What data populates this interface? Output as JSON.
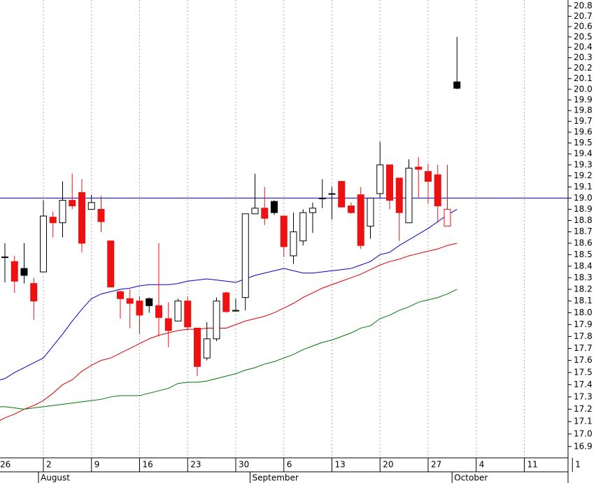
{
  "chart_data": {
    "type": "candlestick",
    "log_scale": true,
    "grid": true,
    "ylim": [
      16.81,
      20.86
    ],
    "yticks": [
      16.9,
      {
        "value": 17,
        "label": "17.0"
      },
      17.1,
      17.2,
      17.3,
      17.4,
      17.5,
      17.6,
      17.7,
      17.8,
      17.9,
      {
        "value": 18,
        "label": "18.0"
      },
      18.1,
      18.2,
      18.3,
      18.4,
      18.5,
      18.6,
      18.7,
      18.8,
      18.9,
      {
        "value": 19,
        "label": "19.0"
      },
      19.1,
      19.2,
      19.3,
      19.4,
      19.5,
      19.6,
      19.7,
      19.8,
      19.9,
      {
        "value": 20,
        "label": "20.0"
      },
      20.1,
      20.2,
      20.3,
      20.4,
      20.5,
      20.6,
      20.7,
      20.8
    ],
    "categories": [
      "26",
      null,
      null,
      null,
      null,
      "2",
      null,
      null,
      null,
      null,
      "9",
      null,
      null,
      null,
      null,
      "16",
      null,
      null,
      null,
      null,
      "23",
      null,
      null,
      null,
      null,
      "30",
      null,
      null,
      null,
      null,
      "6",
      null,
      null,
      null,
      null,
      "13",
      null,
      null,
      null,
      null,
      "20",
      null,
      null,
      null,
      null,
      "27",
      null,
      null,
      null,
      null,
      "4",
      null,
      null,
      null,
      null,
      "11",
      null,
      null,
      null,
      null,
      "1"
    ],
    "month_labels": [
      null,
      null,
      null,
      null,
      null,
      "August",
      null,
      null,
      null,
      null,
      null,
      null,
      null,
      null,
      null,
      null,
      null,
      null,
      null,
      null,
      null,
      null,
      null,
      null,
      null,
      null,
      null,
      "September",
      null,
      null,
      null,
      null,
      null,
      null,
      null,
      null,
      null,
      null,
      null,
      null,
      null,
      null,
      null,
      null,
      null,
      null,
      null,
      null,
      "October",
      null,
      null,
      null,
      null,
      null,
      null,
      null,
      null,
      null,
      null,
      null,
      null
    ],
    "open": [
      null,
      18.48,
      18.44,
      18.38,
      18.25,
      18.35,
      18.83,
      18.78,
      18.98,
      19.05,
      18.9,
      18.9,
      18.62,
      18.18,
      18.12,
      18.1,
      18.12,
      18.06,
      17.95,
      17.93,
      18.1,
      17.87,
      17.62,
      17.78,
      18.17,
      18.02,
      18.13,
      18.86,
      18.91,
      18.97,
      18.84,
      18.49,
      18.62,
      18.87,
      19.0,
      19.04,
      19.15,
      18.93,
      19.03,
      18.75,
      19.04,
      19.3,
      19.18,
      18.78,
      19.28,
      19.24,
      19.21,
      18.75,
      20.07,
      null,
      null,
      null,
      null,
      null,
      null,
      null,
      null,
      null,
      null,
      null,
      null
    ],
    "high": [
      null,
      18.6,
      18.49,
      18.6,
      18.3,
      18.98,
      18.88,
      19.15,
      19.22,
      19.17,
      19.03,
      19.02,
      18.62,
      18.19,
      18.2,
      18.14,
      18.13,
      18.6,
      18.09,
      18.12,
      18.14,
      17.87,
      17.92,
      18.13,
      18.18,
      18.12,
      18.86,
      19.22,
      19.1,
      18.98,
      18.84,
      18.87,
      18.9,
      18.96,
      19.17,
      19.1,
      19.15,
      18.96,
      19.1,
      19.0,
      19.51,
      19.3,
      19.18,
      19.35,
      19.37,
      19.31,
      19.3,
      19.3,
      20.5,
      null,
      null,
      null,
      null,
      null,
      null,
      null,
      null,
      null,
      null,
      null,
      null
    ],
    "low": [
      null,
      18.26,
      18.17,
      18.25,
      17.94,
      18.35,
      18.65,
      18.65,
      18.9,
      18.52,
      18.9,
      18.7,
      18.22,
      17.95,
      17.87,
      17.82,
      18.0,
      17.8,
      17.71,
      17.93,
      17.85,
      17.47,
      17.6,
      17.76,
      18.0,
      18.02,
      18.02,
      18.86,
      18.76,
      18.85,
      18.48,
      18.42,
      18.58,
      18.69,
      18.91,
      18.81,
      18.92,
      18.86,
      18.55,
      18.64,
      19.0,
      18.9,
      18.62,
      18.78,
      19.0,
      18.95,
      18.78,
      18.75,
      20.0,
      null,
      null,
      null,
      null,
      null,
      null,
      null,
      null,
      null,
      null,
      null,
      null
    ],
    "close": [
      null,
      18.48,
      18.27,
      18.32,
      18.1,
      18.84,
      18.78,
      18.98,
      18.93,
      18.6,
      18.96,
      18.79,
      18.22,
      18.12,
      18.08,
      17.98,
      18.06,
      17.96,
      17.85,
      18.1,
      17.88,
      17.55,
      17.78,
      18.1,
      18.01,
      18.02,
      18.86,
      18.91,
      18.82,
      18.87,
      18.57,
      18.7,
      18.87,
      18.91,
      19.0,
      19.04,
      18.92,
      18.87,
      18.58,
      19.0,
      19.3,
      18.98,
      18.87,
      19.27,
      19.26,
      19.15,
      18.93,
      18.9,
      20.01,
      null,
      null,
      null,
      null,
      null,
      null,
      null,
      null,
      null,
      null,
      null,
      null
    ],
    "fills": [
      null,
      "#000000",
      "#ee1111",
      "#000000",
      "#ee1111",
      "#ffffff",
      "#ee1111",
      "#ffffff",
      "#ee1111",
      "#ee1111",
      "#ffffff",
      "#ee1111",
      "#ee1111",
      "#ee1111",
      "#ee1111",
      "#ee1111",
      "#000000",
      "#ee1111",
      "#ee1111",
      "#ffffff",
      "#ee1111",
      "#ee1111",
      "#ffffff",
      "#ffffff",
      "#ee1111",
      "#000000",
      "#ffffff",
      "#ffffff",
      "#ee1111",
      "#000000",
      "#ee1111",
      "#ffffff",
      "#ffffff",
      "#ffffff",
      "#ffffff",
      "#ffffff",
      "#ee1111",
      "#ee1111",
      "#ee1111",
      "#ffffff",
      "#ffffff",
      "#ee1111",
      "#ee1111",
      "#ffffff",
      "#ee1111",
      "#ee1111",
      "#ee1111",
      "#ffffff",
      "#000000",
      null,
      null,
      null,
      null,
      null,
      null,
      null,
      null,
      null,
      null,
      null,
      null
    ],
    "edges": [
      null,
      "#000000",
      "#ee1111",
      "#000000",
      "#ee1111",
      "#000000",
      "#ee1111",
      "#000000",
      "#ee1111",
      "#ee1111",
      "#000000",
      "#ee1111",
      "#ee1111",
      "#ee1111",
      "#ee1111",
      "#ee1111",
      "#000000",
      "#ee1111",
      "#ee1111",
      "#000000",
      "#ee1111",
      "#ee1111",
      "#000000",
      "#000000",
      "#ee1111",
      "#000000",
      "#000000",
      "#000000",
      "#ee1111",
      "#000000",
      "#ee1111",
      "#000000",
      "#000000",
      "#000000",
      "#000000",
      "#000000",
      "#ee1111",
      "#ee1111",
      "#ee1111",
      "#000000",
      "#000000",
      "#ee1111",
      "#ee1111",
      "#000000",
      "#ee1111",
      "#ee1111",
      "#ee1111",
      "#ee1111",
      "#000000",
      null,
      null,
      null,
      null,
      null,
      null,
      null,
      null,
      null,
      null,
      null,
      null
    ],
    "hline": {
      "value": 19,
      "color": "#0000cc"
    },
    "series": [
      {
        "color": "#0000cc",
        "values": [
          17.43,
          17.45,
          17.5,
          17.54,
          17.58,
          17.62,
          17.72,
          17.82,
          17.93,
          18.03,
          18.12,
          18.16,
          18.18,
          18.2,
          18.21,
          18.23,
          18.24,
          18.24,
          18.24,
          18.25,
          18.27,
          18.28,
          18.29,
          18.28,
          18.27,
          18.26,
          18.29,
          18.32,
          18.34,
          18.36,
          18.38,
          18.36,
          18.34,
          18.34,
          18.35,
          18.36,
          18.37,
          18.38,
          18.41,
          18.44,
          18.5,
          18.52,
          18.58,
          18.63,
          18.68,
          18.73,
          18.79,
          18.85,
          18.9,
          null,
          null,
          null,
          null,
          null,
          null,
          null,
          null,
          null,
          null,
          null,
          null
        ]
      },
      {
        "color": "#dd0000",
        "values": [
          17.09,
          17.13,
          17.16,
          17.2,
          17.23,
          17.27,
          17.33,
          17.4,
          17.44,
          17.51,
          17.56,
          17.6,
          17.62,
          17.66,
          17.7,
          17.74,
          17.78,
          17.81,
          17.83,
          17.85,
          17.86,
          17.86,
          17.87,
          17.87,
          17.87,
          17.9,
          17.93,
          17.95,
          17.97,
          18.0,
          18.04,
          18.08,
          18.13,
          18.17,
          18.21,
          18.24,
          18.27,
          18.3,
          18.33,
          18.37,
          18.41,
          18.44,
          18.46,
          18.49,
          18.51,
          18.53,
          18.55,
          18.58,
          18.6,
          null,
          null,
          null,
          null,
          null,
          null,
          null,
          null,
          null,
          null,
          null,
          null
        ]
      },
      {
        "color": "#007700",
        "values": [
          17.22,
          17.22,
          17.21,
          17.2,
          17.21,
          17.22,
          17.23,
          17.24,
          17.25,
          17.26,
          17.27,
          17.28,
          17.3,
          17.31,
          17.31,
          17.31,
          17.33,
          17.35,
          17.37,
          17.41,
          17.42,
          17.42,
          17.43,
          17.45,
          17.47,
          17.49,
          17.52,
          17.54,
          17.57,
          17.59,
          17.62,
          17.65,
          17.69,
          17.72,
          17.75,
          17.77,
          17.8,
          17.83,
          17.87,
          17.89,
          17.95,
          17.98,
          18.02,
          18.05,
          18.09,
          18.11,
          18.13,
          18.16,
          18.2,
          null,
          null,
          null,
          null,
          null,
          null,
          null,
          null,
          null,
          null,
          null,
          null
        ]
      }
    ]
  }
}
